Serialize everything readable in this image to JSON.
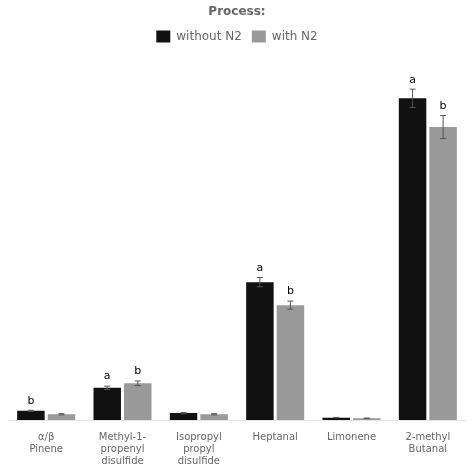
{
  "chart_data": {
    "type": "bar",
    "categories": [
      "α/β\nPinene",
      "Methyl-1-\npropenyl\ndisulfide",
      "Isopropyl\npropyl\ndisulfide",
      "Heptanal",
      "Limonene",
      "2-methyl\nButanal"
    ],
    "series": [
      {
        "name": "without N2",
        "color": "#111111",
        "values": [
          0.8,
          2.8,
          0.6,
          12.0,
          0.2,
          28.0
        ],
        "error": [
          0.05,
          0.15,
          0.05,
          0.4,
          0.02,
          0.8
        ],
        "annotations": [
          "b",
          "a",
          null,
          "a",
          null,
          "a"
        ]
      },
      {
        "name": "with N2",
        "color": "#999999",
        "values": [
          0.5,
          3.2,
          0.5,
          10.0,
          0.15,
          25.5
        ],
        "error": [
          0.05,
          0.2,
          0.05,
          0.35,
          0.02,
          1.0
        ],
        "annotations": [
          null,
          "b",
          null,
          "b",
          null,
          "b"
        ]
      }
    ],
    "ylim": [
      0,
      32
    ],
    "grid": false,
    "legend": "top",
    "legend_title": "Process:",
    "tick_labels": "x"
  }
}
